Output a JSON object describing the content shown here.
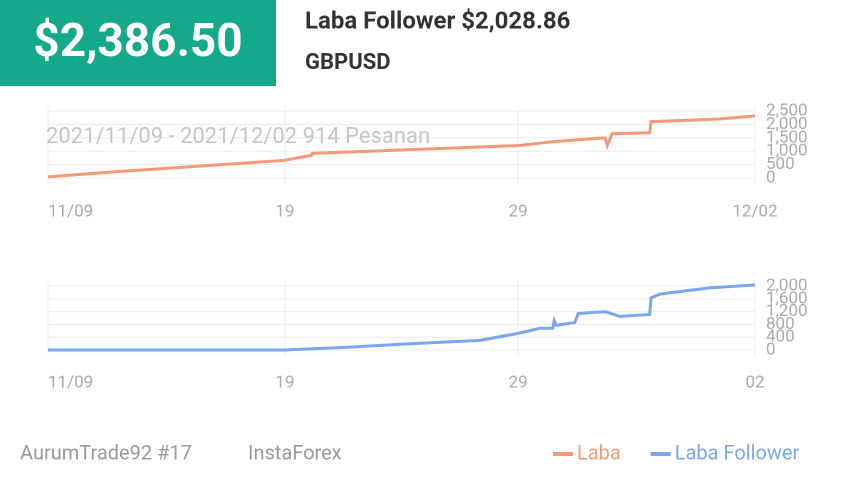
{
  "header": {
    "amount": "$2,386.50",
    "title": "Laba Follower $2,028.86",
    "symbol": "GBPUSD"
  },
  "footer": {
    "account": "AurumTrade92 #17",
    "broker": "InstaForex"
  },
  "chart_data": [
    {
      "type": "line",
      "subtitle": "2021/11/09 - 2021/12/02  914 Pesanan",
      "series": [
        {
          "name": "Laba",
          "color": "#f39a78",
          "x": [
            0,
            8.8,
            33.5,
            37.3,
            37.4,
            66.5,
            71.7,
            78.8,
            79.1,
            79.8,
            85.1,
            85.3,
            95,
            100
          ],
          "values": [
            40,
            220,
            660,
            850,
            920,
            1210,
            1360,
            1500,
            1210,
            1650,
            1690,
            2100,
            2200,
            2320
          ]
        }
      ],
      "xlim": [
        0,
        100
      ],
      "xticks": [
        {
          "value": 0,
          "label": "11/09"
        },
        {
          "value": 33.5,
          "label": "19"
        },
        {
          "value": 66.5,
          "label": "29"
        },
        {
          "value": 100,
          "label": "12/02"
        }
      ],
      "ylim": [
        0,
        2500
      ],
      "yticks": [
        0,
        500,
        {
          "value": 1000,
          "label": "1,000"
        },
        {
          "value": 1500,
          "label": "1,500"
        },
        {
          "value": 2000,
          "label": "2,000"
        },
        {
          "value": 2500,
          "label": "2,500"
        }
      ],
      "grid": true
    },
    {
      "type": "line",
      "series": [
        {
          "name": "Laba Follower",
          "color": "#7aa6f0",
          "x": [
            0,
            33.5,
            42.7,
            49.8,
            61.1,
            66.5,
            69.6,
            71.4,
            71.6,
            71.9,
            74.5,
            75.0,
            78.8,
            80.9,
            85.1,
            85.3,
            86.6,
            93.6,
            100
          ],
          "values": [
            0,
            0,
            90,
            180,
            300,
            520,
            680,
            680,
            920,
            770,
            860,
            1140,
            1200,
            1050,
            1110,
            1630,
            1750,
            1940,
            2030
          ]
        }
      ],
      "xlim": [
        0,
        100
      ],
      "xticks": [
        {
          "value": 0,
          "label": "11/09"
        },
        {
          "value": 33.5,
          "label": "19"
        },
        {
          "value": 66.5,
          "label": "29"
        },
        {
          "value": 100,
          "label": "02"
        }
      ],
      "ylim": [
        0,
        2000
      ],
      "yticks": [
        0,
        400,
        800,
        {
          "value": 1200,
          "label": "1,200"
        },
        {
          "value": 1600,
          "label": "1,600"
        },
        {
          "value": 2000,
          "label": "2,000"
        }
      ],
      "grid": true
    }
  ]
}
